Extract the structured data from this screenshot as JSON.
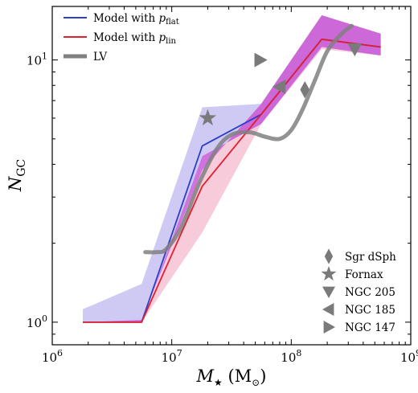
{
  "chart_data": {
    "type": "line",
    "xlabel": {
      "main": "M",
      "sub": "★",
      "unit": "(M",
      "unit_sub": "⊙",
      "unit_close": ")"
    },
    "ylabel": {
      "main": "N",
      "sub": "GC"
    },
    "x_scale": "log",
    "y_scale": "log",
    "xlim": [
      1000000,
      1000000000
    ],
    "ylim": [
      0.82,
      16
    ],
    "x_ticks": [
      {
        "value": 1000000,
        "base": "10",
        "exp": "6"
      },
      {
        "value": 10000000,
        "base": "10",
        "exp": "7"
      },
      {
        "value": 100000000,
        "base": "10",
        "exp": "8"
      },
      {
        "value": 1000000000,
        "base": "10",
        "exp": "9"
      }
    ],
    "y_ticks": [
      {
        "value": 1,
        "base": "10",
        "exp": "0"
      },
      {
        "value": 10,
        "base": "10",
        "exp": "1"
      }
    ],
    "series": [
      {
        "name": "Model with p_flat",
        "legend_main": "Model with ",
        "legend_var": "p",
        "legend_sub": "flat",
        "color": "#2b3fc7",
        "band_color": "#b9b4ee",
        "x": [
          1800000,
          5600000,
          18000000,
          56000000,
          180000000,
          560000000
        ],
        "y": [
          1.0,
          1.0,
          4.7,
          6.2,
          12.0,
          11.2
        ],
        "lower": [
          1.0,
          1.0,
          4.3,
          5.7,
          11.2,
          10.4
        ],
        "upper": [
          1.12,
          1.4,
          6.6,
          6.8,
          14.8,
          12.6
        ]
      },
      {
        "name": "Model with p_lin",
        "legend_main": "Model with ",
        "legend_var": "p",
        "legend_sub": "lin",
        "color": "#e02030",
        "band_color": "#f4a9c2",
        "x": [
          1800000,
          5600000,
          18000000,
          56000000,
          180000000,
          560000000
        ],
        "y": [
          1.0,
          1.0,
          3.3,
          6.2,
          12.0,
          11.2
        ],
        "lower": [
          1.0,
          1.0,
          2.2,
          5.7,
          11.0,
          10.4
        ],
        "upper": [
          1.0,
          1.02,
          3.8,
          6.8,
          14.8,
          12.6
        ]
      },
      {
        "name": "LV",
        "legend_label": "LV",
        "color": "#808080",
        "x": [
          6000000,
          7500000,
          9000000,
          12000000,
          17000000,
          24000000,
          32000000,
          45000000,
          60000000,
          80000000,
          100000000,
          125000000,
          160000000,
          200000000,
          260000000,
          320000000
        ],
        "y": [
          1.85,
          1.85,
          1.9,
          2.3,
          3.4,
          4.6,
          5.2,
          5.3,
          5.1,
          5.0,
          5.4,
          6.5,
          8.5,
          10.8,
          12.5,
          13.5
        ]
      }
    ],
    "galaxies": [
      {
        "name": "Sgr dSph",
        "marker": "diamond",
        "x": 130000000,
        "y": 7.7
      },
      {
        "name": "Fornax",
        "marker": "star",
        "x": 20000000,
        "y": 6.0
      },
      {
        "name": "NGC 205",
        "marker": "triangle-down",
        "x": 340000000,
        "y": 11.0
      },
      {
        "name": "NGC 185",
        "marker": "triangle-left",
        "x": 80000000,
        "y": 7.9
      },
      {
        "name": "NGC 147",
        "marker": "triangle-right",
        "x": 55000000,
        "y": 10.0
      }
    ],
    "legend_position": "top-left",
    "marker_legend_position": "bottom-right",
    "grid": false
  }
}
